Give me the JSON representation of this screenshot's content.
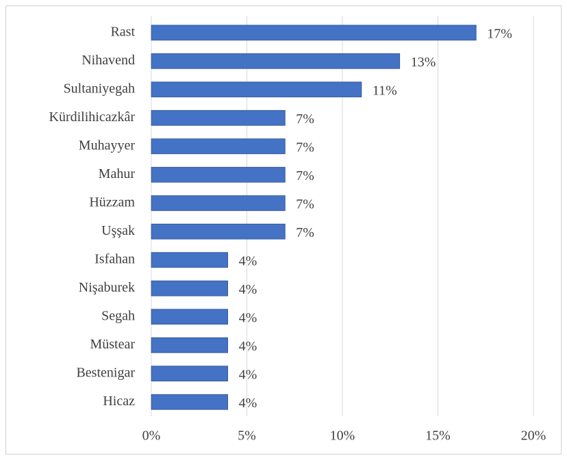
{
  "chart_data": {
    "type": "bar",
    "orientation": "horizontal",
    "categories": [
      "Rast",
      "Nihavend",
      "Sultaniyegah",
      "Kürdilihicazkâr",
      "Muhayyer",
      "Mahur",
      "Hüzzam",
      "Uşşak",
      "Isfahan",
      "Nişaburek",
      "Segah",
      "Müstear",
      "Bestenigar",
      "Hicaz"
    ],
    "values": [
      17,
      13,
      11,
      7,
      7,
      7,
      7,
      7,
      4,
      4,
      4,
      4,
      4,
      4
    ],
    "value_labels": [
      "17%",
      "13%",
      "11%",
      "7%",
      "7%",
      "7%",
      "7%",
      "7%",
      "4%",
      "4%",
      "4%",
      "4%",
      "4%",
      "4%"
    ],
    "color": "#4472c4",
    "xlim": [
      0,
      20
    ],
    "xticks": [
      {
        "value": 0,
        "label": "0%"
      },
      {
        "value": 5,
        "label": "5%"
      },
      {
        "value": 10,
        "label": "10%"
      },
      {
        "value": 15,
        "label": "15%"
      },
      {
        "value": 20,
        "label": "20%"
      }
    ],
    "grid": true
  }
}
